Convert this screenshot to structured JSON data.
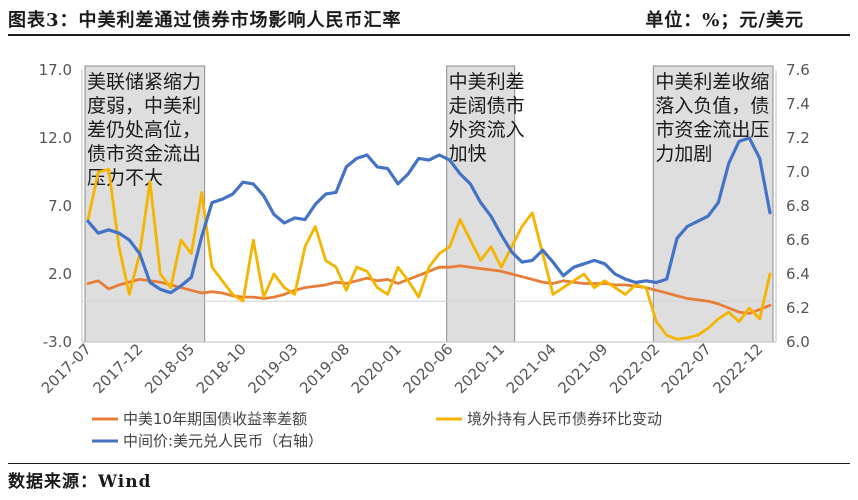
{
  "title": "图表3：中美利差通过债券市场影响人民币汇率",
  "unit": "单位：%；元/美元",
  "source": "数据来源：Wind",
  "chart_data": {
    "type": "line",
    "x": [
      "2017-07",
      "2017-08",
      "2017-09",
      "2017-10",
      "2017-11",
      "2017-12",
      "2018-01",
      "2018-02",
      "2018-03",
      "2018-04",
      "2018-05",
      "2018-06",
      "2018-07",
      "2018-08",
      "2018-09",
      "2018-10",
      "2018-11",
      "2018-12",
      "2019-01",
      "2019-02",
      "2019-03",
      "2019-04",
      "2019-05",
      "2019-06",
      "2019-07",
      "2019-08",
      "2019-09",
      "2019-10",
      "2019-11",
      "2019-12",
      "2020-01",
      "2020-02",
      "2020-03",
      "2020-04",
      "2020-05",
      "2020-06",
      "2020-07",
      "2020-08",
      "2020-09",
      "2020-10",
      "2020-11",
      "2020-12",
      "2021-01",
      "2021-02",
      "2021-03",
      "2021-04",
      "2021-05",
      "2021-06",
      "2021-07",
      "2021-08",
      "2021-09",
      "2021-10",
      "2021-11",
      "2021-12",
      "2022-01",
      "2022-02",
      "2022-03",
      "2022-04",
      "2022-05",
      "2022-06",
      "2022-07",
      "2022-08",
      "2022-09",
      "2022-10",
      "2022-11",
      "2022-12",
      "2023-01"
    ],
    "x_tick_labels": [
      "2017-07",
      "2017-12",
      "2018-05",
      "2018-10",
      "2019-03",
      "2019-08",
      "2020-01",
      "2020-06",
      "2020-11",
      "2021-04",
      "2021-09",
      "2022-02",
      "2022-07",
      "2022-12"
    ],
    "y_left": {
      "ticks": [
        "17.0",
        "12.0",
        "7.0",
        "2.0",
        "-3.0"
      ],
      "range": [
        -3.0,
        17.0
      ]
    },
    "y_right": {
      "ticks": [
        "7.6",
        "7.4",
        "7.2",
        "7.0",
        "6.8",
        "6.6",
        "6.4",
        "6.2",
        "6.0"
      ],
      "range": [
        6.0,
        7.6
      ]
    },
    "shaded_periods": [
      {
        "start": "2017-07",
        "end": "2018-06",
        "label": "美联储紧缩力度弱，中美利差仍处高位，债市资金流出压力不大",
        "label_lines": [
          "美联储紧缩力",
          "度弱，中美利",
          "差仍处高位，",
          "债市资金流出",
          "压力不大"
        ]
      },
      {
        "start": "2020-06",
        "end": "2020-12",
        "label": "中美利差走阔债市外资流入加快",
        "label_lines": [
          "中美利差",
          "走阔债市",
          "外资流入",
          "加快"
        ]
      },
      {
        "start": "2022-02",
        "end": "2023-01",
        "label": "中美利差收缩落入负值，债市资金流出压力加剧",
        "label_lines": [
          "中美利差收缩",
          "落入负值，债",
          "市资金流出压",
          "力加剧"
        ]
      }
    ],
    "series": [
      {
        "name": "中美10年期国债收益率差额",
        "axis": "left",
        "color": "#E67E3A",
        "values": [
          1.3,
          1.5,
          0.9,
          1.2,
          1.4,
          1.6,
          1.5,
          1.4,
          1.2,
          1.0,
          0.8,
          0.6,
          0.7,
          0.6,
          0.4,
          0.3,
          0.3,
          0.2,
          0.3,
          0.5,
          0.8,
          1.0,
          1.1,
          1.2,
          1.4,
          1.3,
          1.5,
          1.7,
          1.5,
          1.6,
          1.3,
          1.6,
          1.9,
          2.2,
          2.5,
          2.5,
          2.6,
          2.5,
          2.4,
          2.3,
          2.2,
          2.0,
          1.8,
          1.6,
          1.4,
          1.3,
          1.5,
          1.4,
          1.3,
          1.3,
          1.3,
          1.2,
          1.2,
          1.1,
          1.0,
          0.8,
          0.6,
          0.4,
          0.2,
          0.1,
          0.0,
          -0.2,
          -0.5,
          -0.8,
          -0.9,
          -0.6,
          -0.3
        ]
      },
      {
        "name": "境外持有人民币债券环比变动",
        "axis": "left",
        "color": "#F5B400",
        "values": [
          6.0,
          9.5,
          9.7,
          4.0,
          0.5,
          3.5,
          8.8,
          2.0,
          1.0,
          4.5,
          3.5,
          8.0,
          2.5,
          1.5,
          0.5,
          0.0,
          4.5,
          0.3,
          2.0,
          1.0,
          0.5,
          4.0,
          5.5,
          3.0,
          2.5,
          0.8,
          2.5,
          2.2,
          1.0,
          0.5,
          2.5,
          1.5,
          0.3,
          2.5,
          3.5,
          4.0,
          6.0,
          4.5,
          3.0,
          4.0,
          2.5,
          4.0,
          5.5,
          6.5,
          3.5,
          0.5,
          1.0,
          1.5,
          2.0,
          1.0,
          1.5,
          1.0,
          0.5,
          1.2,
          1.0,
          -1.5,
          -2.5,
          -2.8,
          -2.7,
          -2.5,
          -2.0,
          -1.3,
          -0.8,
          -1.5,
          -0.5,
          -1.3,
          2.0
        ]
      },
      {
        "name": "中间价:美元兑人民币（右轴）",
        "axis": "right",
        "color": "#4472C4",
        "values": [
          6.71,
          6.64,
          6.66,
          6.64,
          6.6,
          6.52,
          6.35,
          6.31,
          6.29,
          6.33,
          6.38,
          6.62,
          6.82,
          6.84,
          6.87,
          6.94,
          6.93,
          6.86,
          6.75,
          6.7,
          6.73,
          6.72,
          6.81,
          6.87,
          6.88,
          7.03,
          7.08,
          7.1,
          7.03,
          7.02,
          6.93,
          6.99,
          7.08,
          7.07,
          7.1,
          7.07,
          6.99,
          6.93,
          6.82,
          6.74,
          6.63,
          6.53,
          6.47,
          6.48,
          6.54,
          6.47,
          6.39,
          6.44,
          6.46,
          6.48,
          6.46,
          6.4,
          6.37,
          6.35,
          6.36,
          6.35,
          6.37,
          6.61,
          6.68,
          6.71,
          6.74,
          6.82,
          7.05,
          7.18,
          7.2,
          7.08,
          6.76
        ]
      }
    ],
    "grid": false,
    "legend": "bottom"
  }
}
